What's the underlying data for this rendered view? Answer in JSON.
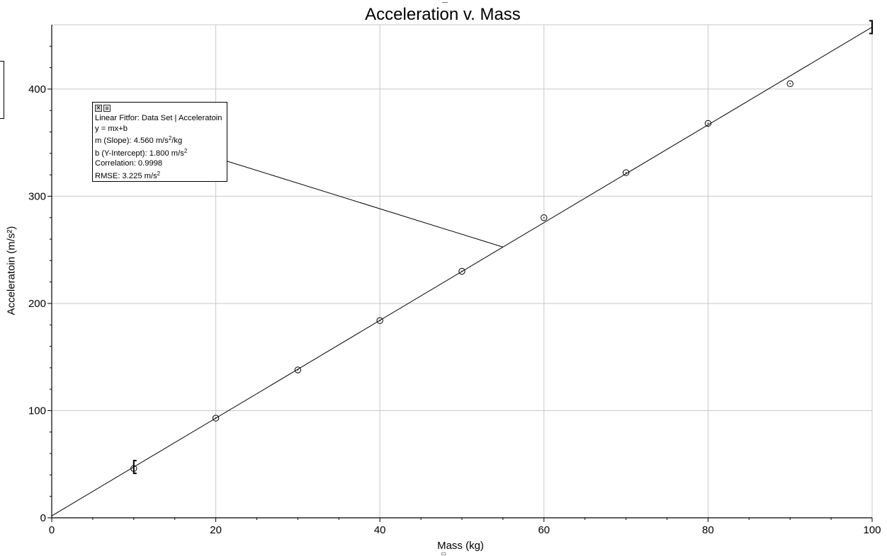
{
  "chart_data": {
    "type": "scatter",
    "title": "Acceleration v. Mass",
    "xlabel": "Mass (kg)",
    "ylabel": "Acceleratoin (m/s²)",
    "xlim": [
      0,
      100
    ],
    "ylim": [
      0,
      460
    ],
    "xticks": [
      "0",
      "20",
      "40",
      "60",
      "80",
      "100"
    ],
    "yticks": [
      "0",
      "100",
      "200",
      "300",
      "400"
    ],
    "grid": true,
    "series": [
      {
        "x": [
          10,
          20,
          30,
          40,
          50,
          60,
          70,
          80,
          90
        ],
        "y": [
          46,
          93,
          138,
          184,
          230,
          280,
          322,
          368,
          405
        ]
      }
    ],
    "fit_line": {
      "slope": 4.56,
      "intercept": 1.8,
      "x_range": [
        0,
        100
      ]
    },
    "range_brackets": [
      10,
      100
    ]
  },
  "fit_box": {
    "close_icon": "close-icon",
    "menu_icon": "menu-icon",
    "lines": {
      "title": "Linear Fitfor: Data Set | Acceleratoin",
      "equation": "y = mx+b",
      "slope_label": "m (Slope): 4.560 m/s",
      "slope_sup": "2",
      "slope_unit": "/kg",
      "intercept_label": "b (Y-Intercept): 1.800 m/s",
      "intercept_sup": "2",
      "correlation": "Correlation: 0.9998",
      "rmse_label": "RMSE: 3.225 m/s",
      "rmse_sup": "2"
    }
  }
}
